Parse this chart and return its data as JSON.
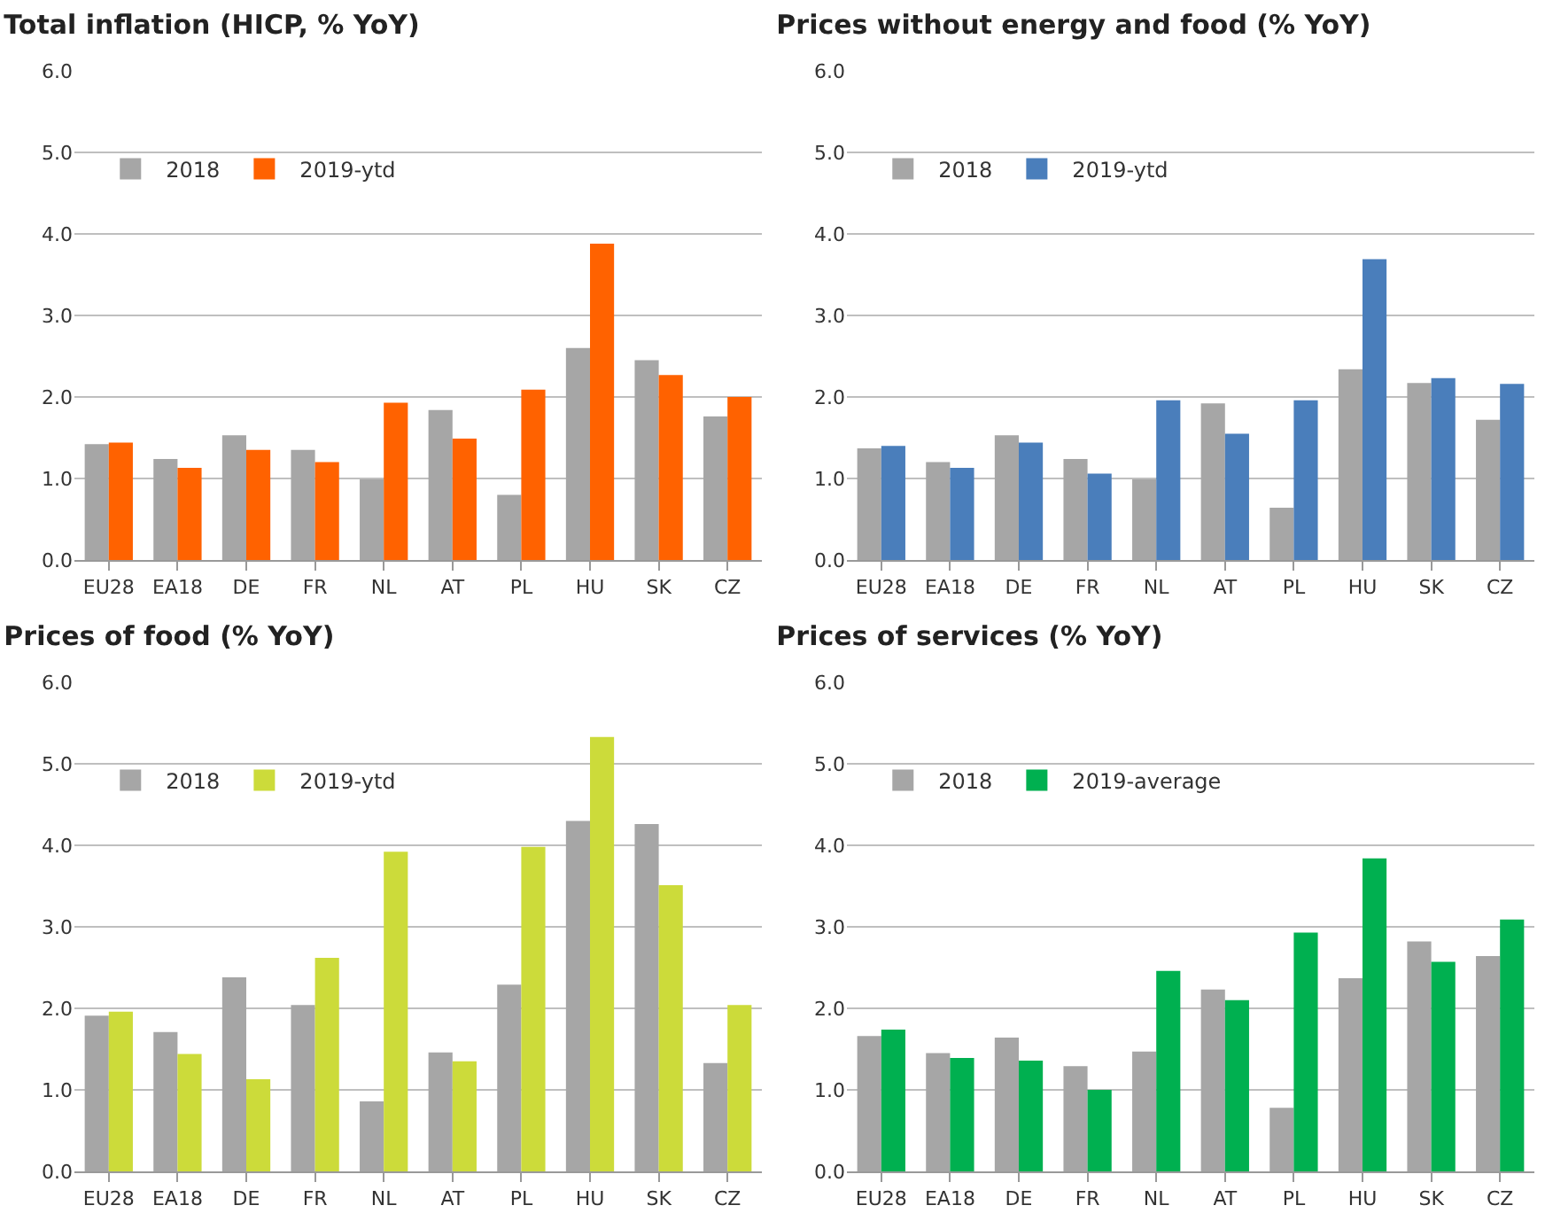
{
  "chart_data": [
    {
      "type": "bar",
      "title": "Total inflation (HICP, % YoY)",
      "categories": [
        "EU28",
        "EA18",
        "DE",
        "FR",
        "NL",
        "AT",
        "PL",
        "HU",
        "SK",
        "CZ"
      ],
      "series": [
        {
          "name": "2018",
          "color": "#a6a6a6",
          "values": [
            1.42,
            1.24,
            1.53,
            1.35,
            0.99,
            1.84,
            0.8,
            2.6,
            2.45,
            1.76
          ]
        },
        {
          "name": "2019-ytd",
          "color": "#ff6200",
          "values": [
            1.44,
            1.13,
            1.35,
            1.2,
            1.93,
            1.49,
            2.09,
            3.88,
            2.27,
            2.0
          ]
        }
      ],
      "ylim": [
        0,
        6
      ],
      "yticks": [
        {
          "value": 0,
          "label": "0.0"
        },
        {
          "value": 1,
          "label": "1.0"
        },
        {
          "value": 2,
          "label": "2.0"
        },
        {
          "value": 3,
          "label": "3.0"
        },
        {
          "value": 4,
          "label": "4.0"
        },
        {
          "value": 5,
          "label": "5.0"
        },
        {
          "value": 6,
          "label": "6.0"
        }
      ],
      "grid": "y",
      "legend": "top left"
    },
    {
      "type": "bar",
      "title": "Prices without energy and food (% YoY)",
      "categories": [
        "EU28",
        "EA18",
        "DE",
        "FR",
        "NL",
        "AT",
        "PL",
        "HU",
        "SK",
        "CZ"
      ],
      "series": [
        {
          "name": "2018",
          "color": "#a6a6a6",
          "values": [
            1.37,
            1.2,
            1.53,
            1.24,
            0.99,
            1.92,
            0.64,
            2.34,
            2.17,
            1.72
          ]
        },
        {
          "name": "2019-ytd",
          "color": "#4a7ebb",
          "values": [
            1.4,
            1.13,
            1.44,
            1.06,
            1.96,
            1.55,
            1.96,
            3.69,
            2.23,
            2.16
          ]
        }
      ],
      "ylim": [
        0,
        6
      ],
      "yticks": [
        {
          "value": 0,
          "label": "0.0"
        },
        {
          "value": 1,
          "label": "1.0"
        },
        {
          "value": 2,
          "label": "2.0"
        },
        {
          "value": 3,
          "label": "3.0"
        },
        {
          "value": 4,
          "label": "4.0"
        },
        {
          "value": 5,
          "label": "5.0"
        },
        {
          "value": 6,
          "label": "6.0"
        }
      ],
      "grid": "y",
      "legend": "top left"
    },
    {
      "type": "bar",
      "title": "Prices of food (% YoY)",
      "categories": [
        "EU28",
        "EA18",
        "DE",
        "FR",
        "NL",
        "AT",
        "PL",
        "HU",
        "SK",
        "CZ"
      ],
      "series": [
        {
          "name": "2018",
          "color": "#a6a6a6",
          "values": [
            1.91,
            1.71,
            2.38,
            2.04,
            0.86,
            1.46,
            2.29,
            4.3,
            4.26,
            1.33
          ]
        },
        {
          "name": "2019-ytd",
          "color": "#ccdb3a",
          "values": [
            1.96,
            1.44,
            1.13,
            2.62,
            3.92,
            1.35,
            3.98,
            5.33,
            3.51,
            2.04
          ]
        }
      ],
      "ylim": [
        0,
        6
      ],
      "yticks": [
        {
          "value": 0,
          "label": "0.0"
        },
        {
          "value": 1,
          "label": "1.0"
        },
        {
          "value": 2,
          "label": "2.0"
        },
        {
          "value": 3,
          "label": "3.0"
        },
        {
          "value": 4,
          "label": "4.0"
        },
        {
          "value": 5,
          "label": "5.0"
        },
        {
          "value": 6,
          "label": "6.0"
        }
      ],
      "grid": "y",
      "legend": "top left"
    },
    {
      "type": "bar",
      "title": "Prices of services (% YoY)",
      "categories": [
        "EU28",
        "EA18",
        "DE",
        "FR",
        "NL",
        "AT",
        "PL",
        "HU",
        "SK",
        "CZ"
      ],
      "series": [
        {
          "name": "2018",
          "color": "#a6a6a6",
          "values": [
            1.66,
            1.45,
            1.64,
            1.29,
            1.47,
            2.23,
            0.78,
            2.37,
            2.82,
            2.64
          ]
        },
        {
          "name": "2019-average",
          "color": "#00b050",
          "values": [
            1.74,
            1.39,
            1.36,
            1.0,
            2.46,
            2.1,
            2.93,
            3.84,
            2.57,
            3.09
          ]
        }
      ],
      "ylim": [
        0,
        6
      ],
      "yticks": [
        {
          "value": 0,
          "label": "0.0"
        },
        {
          "value": 1,
          "label": "1.0"
        },
        {
          "value": 2,
          "label": "2.0"
        },
        {
          "value": 3,
          "label": "3.0"
        },
        {
          "value": 4,
          "label": "4.0"
        },
        {
          "value": 5,
          "label": "5.0"
        },
        {
          "value": 6,
          "label": "6.0"
        }
      ],
      "grid": "y",
      "legend": "top left"
    }
  ]
}
